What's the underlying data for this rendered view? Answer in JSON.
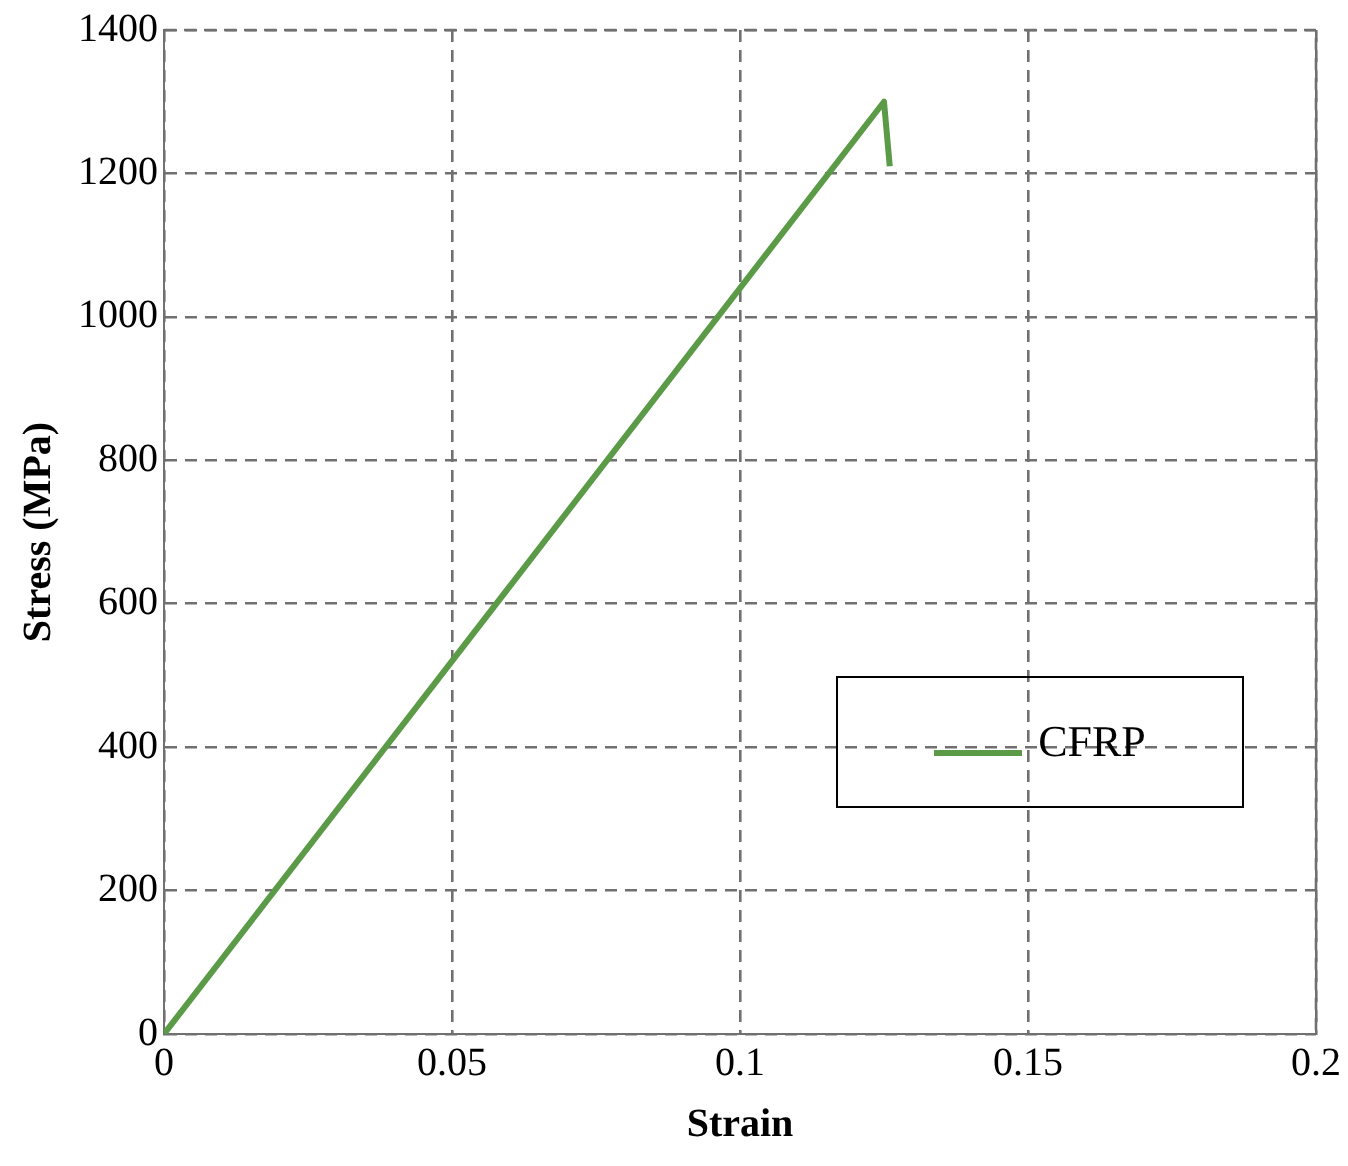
{
  "chart_data": {
    "type": "line",
    "xlabel": "Strain",
    "ylabel": "Stress (MPa)",
    "xlim": [
      0,
      0.2
    ],
    "xticks": [
      0,
      0.05,
      0.1,
      0.15,
      0.2
    ],
    "ylim": [
      0,
      1400
    ],
    "yticks": [
      0,
      200,
      400,
      600,
      800,
      1000,
      1200,
      1400
    ],
    "grid": true,
    "legend": "right",
    "marker": "none",
    "line_style": "solid",
    "series": [
      {
        "name": "CFRP",
        "color": "#5b9a46",
        "x": [
          0,
          0.125,
          0.126
        ],
        "values": [
          0,
          1300,
          1210
        ]
      }
    ]
  }
}
